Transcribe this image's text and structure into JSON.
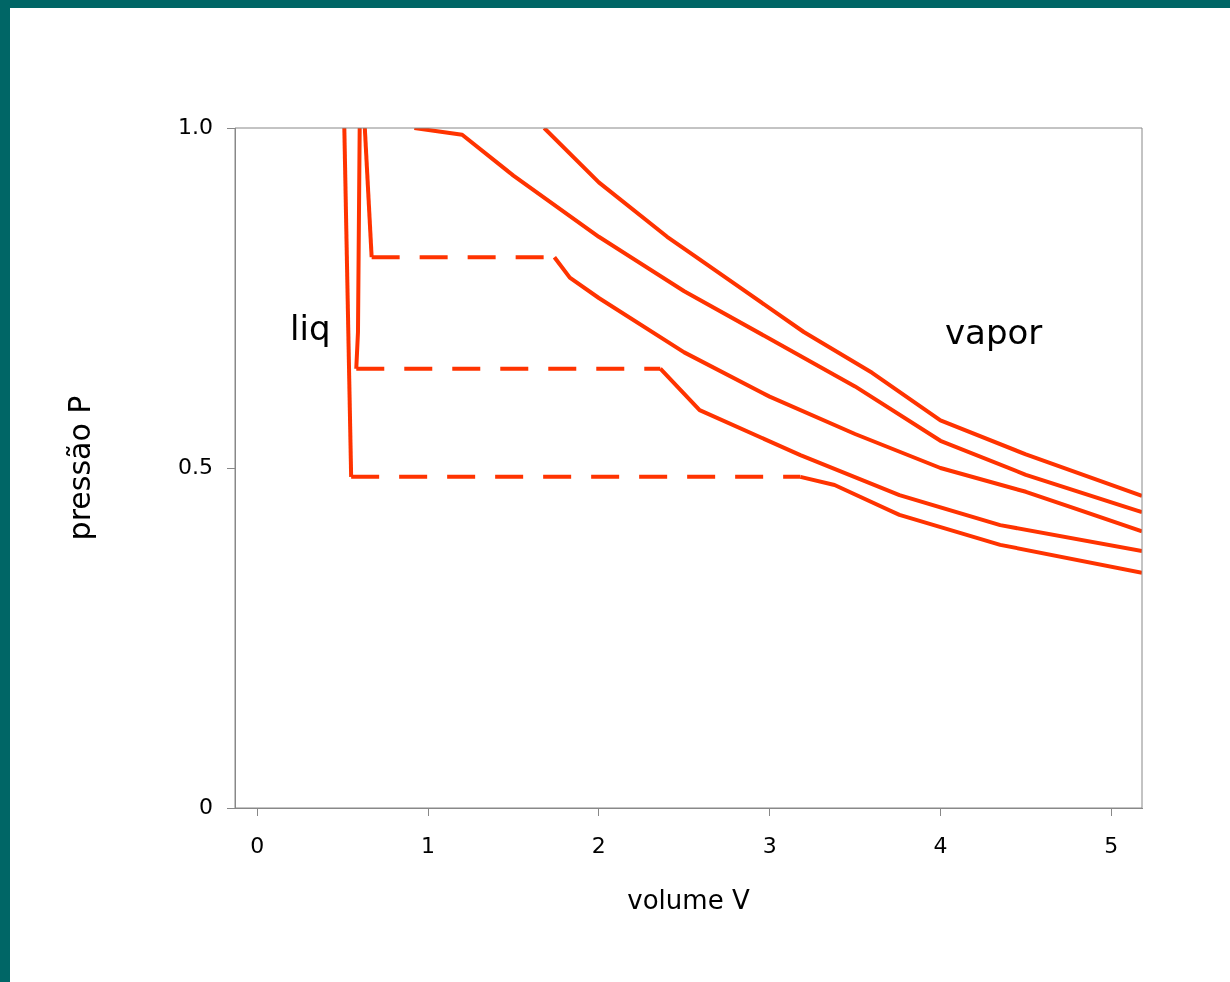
{
  "chart_data": {
    "type": "line",
    "xlabel": "volume V",
    "ylabel": "pressão P",
    "xlim": [
      -0.13,
      5.18
    ],
    "ylim": [
      0,
      1
    ],
    "xticks": [
      0,
      1,
      2,
      3,
      4,
      5
    ],
    "yticks": [
      0,
      {
        "value": 0.5,
        "label": "0.5"
      },
      {
        "value": 1,
        "label": "1.0"
      }
    ],
    "grid": false,
    "legend": false,
    "marker": "none",
    "annotations": [
      "liq",
      "vapor"
    ],
    "series": [
      {
        "color": "#ff3300",
        "line_style": "solid",
        "x": [
          0.51,
          0.55
        ],
        "values": [
          1.0,
          0.487
        ]
      },
      {
        "color": "#ff3300",
        "line_style": "dashed",
        "x": [
          0.55,
          3.18
        ],
        "values": [
          0.487,
          0.487
        ]
      },
      {
        "color": "#ff3300",
        "line_style": "solid",
        "x": [
          3.18,
          3.38,
          3.76,
          4.35,
          5.18
        ],
        "values": [
          0.487,
          0.475,
          0.431,
          0.387,
          0.346
        ]
      },
      {
        "color": "#ff3300",
        "line_style": "solid",
        "x": [
          0.6,
          0.59,
          0.58
        ],
        "values": [
          1.0,
          0.7,
          0.646
        ]
      },
      {
        "color": "#ff3300",
        "line_style": "dashed",
        "x": [
          0.58,
          2.36
        ],
        "values": [
          0.646,
          0.646
        ]
      },
      {
        "color": "#ff3300",
        "line_style": "solid",
        "x": [
          2.36,
          2.59,
          3.18,
          3.76,
          4.35,
          5.18
        ],
        "values": [
          0.646,
          0.585,
          0.519,
          0.46,
          0.416,
          0.378
        ]
      },
      {
        "color": "#ff3300",
        "line_style": "solid",
        "x": [
          0.63,
          0.67
        ],
        "values": [
          1.0,
          0.81
        ]
      },
      {
        "color": "#ff3300",
        "line_style": "dashed",
        "x": [
          0.67,
          1.74
        ],
        "values": [
          0.81,
          0.81
        ]
      },
      {
        "color": "#ff3300",
        "line_style": "solid",
        "x": [
          1.74,
          1.83,
          2.0,
          2.5,
          3.0,
          3.5,
          4.0,
          4.5,
          5.18
        ],
        "values": [
          0.81,
          0.78,
          0.75,
          0.67,
          0.605,
          0.55,
          0.5,
          0.465,
          0.407
        ]
      },
      {
        "color": "#ff3300",
        "line_style": "solid",
        "x": [
          0.92,
          1.2,
          1.5,
          2.0,
          2.5,
          3.0,
          3.5,
          4.0,
          4.5,
          5.18
        ],
        "values": [
          1.0,
          0.99,
          0.93,
          0.84,
          0.76,
          0.69,
          0.62,
          0.54,
          0.49,
          0.435
        ]
      },
      {
        "color": "#ff3300",
        "line_style": "solid",
        "x": [
          1.68,
          2.0,
          2.4,
          2.8,
          3.2,
          3.6,
          4.0,
          4.5,
          5.18
        ],
        "values": [
          1.0,
          0.92,
          0.84,
          0.77,
          0.7,
          0.64,
          0.57,
          0.52,
          0.459
        ]
      }
    ]
  }
}
